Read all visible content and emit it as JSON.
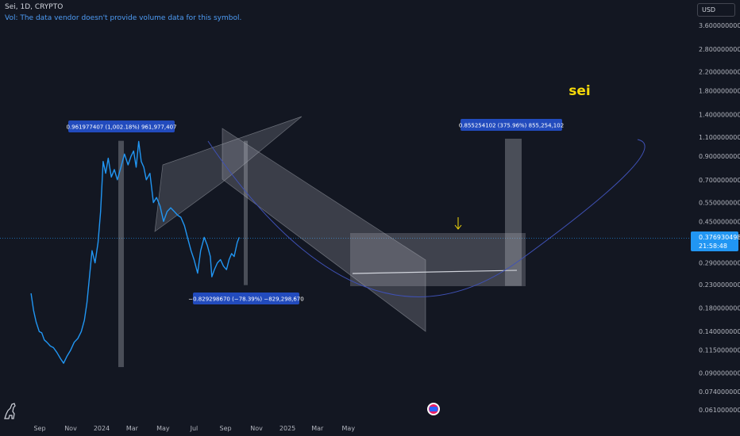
{
  "header": {
    "title": "Sei, 1D, CRYPTO",
    "volume_note": "Vol: The data vendor doesn't provide volume data for this symbol."
  },
  "currency_button": "USD",
  "colors": {
    "background": "#131722",
    "price_line": "#2196f3",
    "label_bg": "#2962ff",
    "overlay": "#b2b5be",
    "watermark": "#f5d90a",
    "curve": "#3f51b5"
  },
  "icons": [
    "dinosaur-icon",
    "alert-icon",
    "arrow-down-icon"
  ],
  "watermark": "sei",
  "price_label": {
    "price": "0.376930498",
    "countdown": "21:58:48"
  },
  "measurements": [
    {
      "text": "0.961977407 (1,002.18%) 961,977,407",
      "from": 0.096,
      "to": 1.058,
      "change_pct": 1002.18
    },
    {
      "text": "−0.829298670 (−78.39%) −829,298,670",
      "from": 1.058,
      "to": 0.229,
      "change_pct": -78.39
    },
    {
      "text": "0.855254102 (375.96%) 855,254,102",
      "from": 0.227,
      "to": 1.082,
      "change_pct": 375.96
    }
  ],
  "chart_data": {
    "type": "line",
    "y_scale": "log",
    "y_ticks": [
      "3.600000000",
      "2.800000000",
      "2.200000000",
      "1.800000000",
      "1.400000000",
      "1.100000000",
      "0.900000000",
      "0.700000000",
      "0.550000000",
      "0.450000000",
      "0.290000000",
      "0.230000000",
      "0.180000000",
      "0.140000000",
      "0.115000000",
      "0.090000000",
      "0.074000000",
      "0.061000000"
    ],
    "x_ticks": [
      "Sep",
      "Nov",
      "2024",
      "Mar",
      "May",
      "Jul",
      "Sep",
      "Nov",
      "2025",
      "Mar",
      "May"
    ],
    "series": [
      {
        "values": [
          [
            "2023-08-15",
            0.21
          ],
          [
            "2023-08-20",
            0.175
          ],
          [
            "2023-08-25",
            0.155
          ],
          [
            "2023-08-31",
            0.14
          ],
          [
            "2023-09-05",
            0.138
          ],
          [
            "2023-09-10",
            0.128
          ],
          [
            "2023-09-15",
            0.125
          ],
          [
            "2023-09-22",
            0.12
          ],
          [
            "2023-09-28",
            0.118
          ],
          [
            "2023-10-05",
            0.112
          ],
          [
            "2023-10-12",
            0.105
          ],
          [
            "2023-10-18",
            0.1
          ],
          [
            "2023-10-25",
            0.108
          ],
          [
            "2023-11-01",
            0.115
          ],
          [
            "2023-11-08",
            0.125
          ],
          [
            "2023-11-15",
            0.13
          ],
          [
            "2023-11-22",
            0.14
          ],
          [
            "2023-11-28",
            0.158
          ],
          [
            "2023-12-03",
            0.19
          ],
          [
            "2023-12-08",
            0.25
          ],
          [
            "2023-12-13",
            0.33
          ],
          [
            "2023-12-19",
            0.29
          ],
          [
            "2023-12-25",
            0.36
          ],
          [
            "2023-12-30",
            0.5
          ],
          [
            "2024-01-04",
            0.85
          ],
          [
            "2024-01-09",
            0.75
          ],
          [
            "2024-01-14",
            0.88
          ],
          [
            "2024-01-20",
            0.72
          ],
          [
            "2024-01-26",
            0.78
          ],
          [
            "2024-02-01",
            0.7
          ],
          [
            "2024-02-08",
            0.8
          ],
          [
            "2024-02-15",
            0.92
          ],
          [
            "2024-02-22",
            0.82
          ],
          [
            "2024-02-28",
            0.9
          ],
          [
            "2024-03-04",
            0.95
          ],
          [
            "2024-03-09",
            0.8
          ],
          [
            "2024-03-14",
            1.05
          ],
          [
            "2024-03-19",
            0.85
          ],
          [
            "2024-03-24",
            0.8
          ],
          [
            "2024-03-29",
            0.7
          ],
          [
            "2024-04-05",
            0.75
          ],
          [
            "2024-04-12",
            0.55
          ],
          [
            "2024-04-18",
            0.58
          ],
          [
            "2024-04-25",
            0.53
          ],
          [
            "2024-05-02",
            0.45
          ],
          [
            "2024-05-09",
            0.5
          ],
          [
            "2024-05-16",
            0.52
          ],
          [
            "2024-05-23",
            0.5
          ],
          [
            "2024-05-30",
            0.48
          ],
          [
            "2024-06-05",
            0.47
          ],
          [
            "2024-06-12",
            0.43
          ],
          [
            "2024-06-18",
            0.38
          ],
          [
            "2024-06-25",
            0.33
          ],
          [
            "2024-07-01",
            0.3
          ],
          [
            "2024-07-08",
            0.26
          ],
          [
            "2024-07-14",
            0.33
          ],
          [
            "2024-07-21",
            0.38
          ],
          [
            "2024-07-27",
            0.35
          ],
          [
            "2024-08-02",
            0.31
          ],
          [
            "2024-08-05",
            0.25
          ],
          [
            "2024-08-10",
            0.27
          ],
          [
            "2024-08-16",
            0.29
          ],
          [
            "2024-08-22",
            0.3
          ],
          [
            "2024-08-28",
            0.28
          ],
          [
            "2024-09-03",
            0.27
          ],
          [
            "2024-09-08",
            0.3
          ],
          [
            "2024-09-13",
            0.32
          ],
          [
            "2024-09-18",
            0.31
          ],
          [
            "2024-09-24",
            0.36
          ],
          [
            "2024-09-28",
            0.38
          ]
        ]
      }
    ]
  }
}
